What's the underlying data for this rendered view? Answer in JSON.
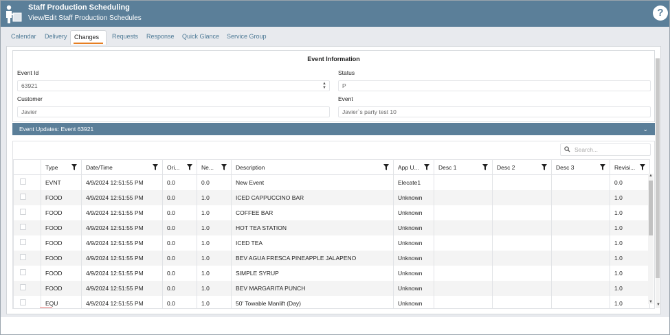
{
  "header": {
    "title": "Staff Production Scheduling",
    "subtitle": "View/Edit Staff Production Schedules",
    "help_label": "?"
  },
  "tabs": [
    {
      "label": "Calendar"
    },
    {
      "label": "Delivery"
    },
    {
      "label": "Changes",
      "active": true
    },
    {
      "label": "Requests"
    },
    {
      "label": "Response"
    },
    {
      "label": "Quick Glance"
    },
    {
      "label": "Service Group"
    }
  ],
  "event_info": {
    "title": "Event Information",
    "event_id_label": "Event Id",
    "event_id_value": "63921",
    "status_label": "Status",
    "status_value": "P",
    "customer_label": "Customer",
    "customer_value": "Javier",
    "event_label": "Event",
    "event_value": "Javier`s party test 10"
  },
  "updates": {
    "title": "Event Updates: Event 63921"
  },
  "grid": {
    "search_placeholder": "Search...",
    "columns": [
      "",
      "Type",
      "Date/Time",
      "Ori...",
      "Ne...",
      "Description",
      "App U...",
      "Desc 1",
      "Desc 2",
      "Desc 3",
      "Revisi..."
    ],
    "rows": [
      [
        "EVNT",
        "4/9/2024 12:51:55 PM",
        "0.0",
        "0.0",
        "New Event",
        "Elecate1",
        "",
        "",
        "",
        "0.0"
      ],
      [
        "FOOD",
        "4/9/2024 12:51:55 PM",
        "0.0",
        "1.0",
        "ICED CAPPUCCINO BAR",
        "Unknown",
        "",
        "",
        "",
        "1.0"
      ],
      [
        "FOOD",
        "4/9/2024 12:51:55 PM",
        "0.0",
        "1.0",
        "COFFEE BAR",
        "Unknown",
        "",
        "",
        "",
        "1.0"
      ],
      [
        "FOOD",
        "4/9/2024 12:51:55 PM",
        "0.0",
        "1.0",
        "HOT TEA STATION",
        "Unknown",
        "",
        "",
        "",
        "1.0"
      ],
      [
        "FOOD",
        "4/9/2024 12:51:55 PM",
        "0.0",
        "1.0",
        "ICED TEA",
        "Unknown",
        "",
        "",
        "",
        "1.0"
      ],
      [
        "FOOD",
        "4/9/2024 12:51:55 PM",
        "0.0",
        "1.0",
        "BEV AGUA FRESCA PINEAPPLE JALAPENO",
        "Unknown",
        "",
        "",
        "",
        "1.0"
      ],
      [
        "FOOD",
        "4/9/2024 12:51:55 PM",
        "0.0",
        "1.0",
        "SIMPLE SYRUP",
        "Unknown",
        "",
        "",
        "",
        "1.0"
      ],
      [
        "FOOD",
        "4/9/2024 12:51:55 PM",
        "0.0",
        "1.0",
        "BEV MARGARITA PUNCH",
        "Unknown",
        "",
        "",
        "",
        "1.0"
      ],
      [
        "EQU",
        "4/9/2024 12:51:55 PM",
        "0.0",
        "1.0",
        "50' Towable Manlift (Day)",
        "Unknown",
        "",
        "",
        "",
        "1.0"
      ]
    ]
  },
  "colors": {
    "header_bg": "#5b7f99",
    "tab_accent": "#e67e22",
    "tab_text": "#4e7a96"
  }
}
